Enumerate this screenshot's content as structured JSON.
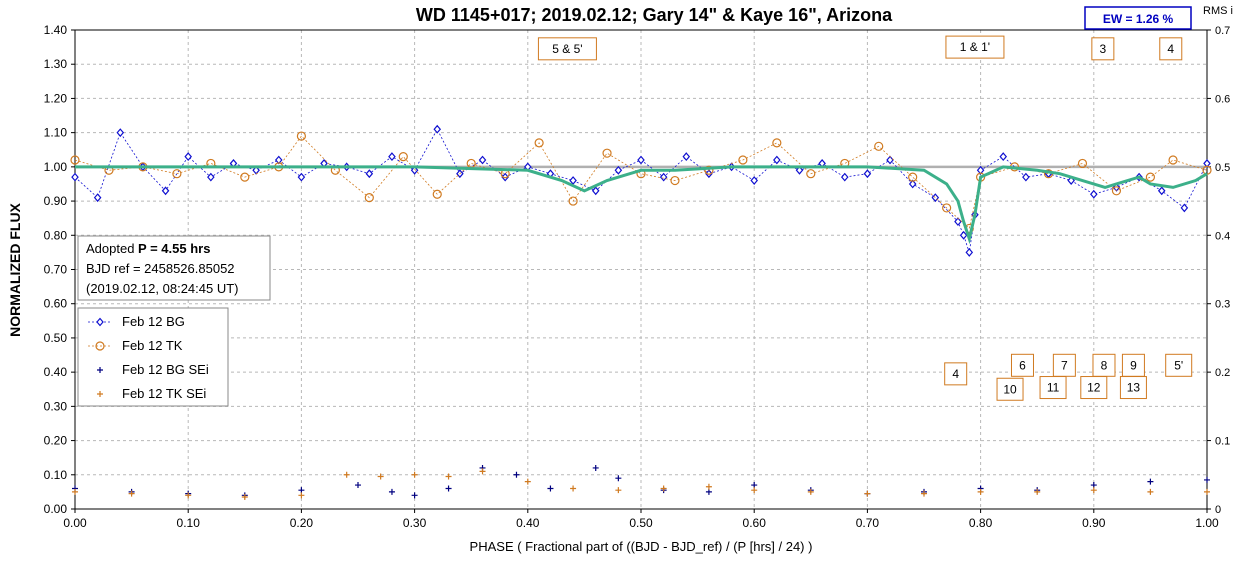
{
  "chart_data": {
    "type": "scatter",
    "title": "WD 1145+017; 2019.02.12; Gary 14\" & Kaye 16\", Arizona",
    "xlabel": "PHASE ( Fractional part of ((BJD - BJD_ref) / (P [hrs] / 24) )",
    "ylabel": "NORMALIZED FLUX",
    "y2label": "RMS i",
    "xlim": [
      0,
      1
    ],
    "ylim": [
      0,
      1.4
    ],
    "y2lim": [
      0,
      0.7
    ],
    "x_ticks": [
      "0.00",
      "0.10",
      "0.20",
      "0.30",
      "0.40",
      "0.50",
      "0.60",
      "0.70",
      "0.80",
      "0.90",
      "1.00"
    ],
    "y_ticks": [
      "0.00",
      "0.10",
      "0.20",
      "0.30",
      "0.40",
      "0.50",
      "0.60",
      "0.70",
      "0.80",
      "0.90",
      "1.00",
      "1.10",
      "1.20",
      "1.30",
      "1.40"
    ],
    "y2_ticks": [
      "0",
      "0.1",
      "0.2",
      "0.3",
      "0.4",
      "0.5",
      "0.6",
      "0.7"
    ],
    "grid": true,
    "legend_position": "left-middle",
    "ew_label": "EW =  1.26 %",
    "info_box": {
      "line1_prefix": "Adopted ",
      "line1_bold": "P = 4.55 hrs",
      "line2": "BJD ref = 2458526.85052",
      "line3": "(2019.02.12, 08:24:45 UT)"
    },
    "annotations": [
      {
        "text": "5 & 5'",
        "x": 0.435,
        "y": 1.345
      },
      {
        "text": "1 & 1'",
        "x": 0.795,
        "y": 1.35
      },
      {
        "text": "3",
        "x": 0.908,
        "y": 1.345
      },
      {
        "text": "4",
        "x": 0.968,
        "y": 1.345
      },
      {
        "text": "6",
        "x": 0.837,
        "y": 0.42
      },
      {
        "text": "7",
        "x": 0.874,
        "y": 0.42
      },
      {
        "text": "8",
        "x": 0.909,
        "y": 0.42
      },
      {
        "text": "9",
        "x": 0.935,
        "y": 0.42
      },
      {
        "text": "5'",
        "x": 0.975,
        "y": 0.42
      },
      {
        "text": "4",
        "x": 0.778,
        "y": 0.395
      },
      {
        "text": "10",
        "x": 0.826,
        "y": 0.35
      },
      {
        "text": "11",
        "x": 0.864,
        "y": 0.355
      },
      {
        "text": "12",
        "x": 0.9,
        "y": 0.355
      },
      {
        "text": "13",
        "x": 0.935,
        "y": 0.355
      }
    ],
    "colors": {
      "bg": "#1010d0",
      "tk": "#d07a20",
      "bg_sei": "#000080",
      "tk_sei": "#d07a20",
      "model": "#3cb08a",
      "baseline": "#b0b0b0",
      "ew_box": "#0000c0"
    },
    "series": [
      {
        "name": "Feb 12 BG",
        "marker": "diamond",
        "line": "dashed",
        "x": [
          0.0,
          0.02,
          0.04,
          0.06,
          0.08,
          0.1,
          0.12,
          0.14,
          0.16,
          0.18,
          0.2,
          0.22,
          0.24,
          0.26,
          0.28,
          0.3,
          0.32,
          0.34,
          0.36,
          0.38,
          0.4,
          0.42,
          0.44,
          0.46,
          0.48,
          0.5,
          0.52,
          0.54,
          0.56,
          0.58,
          0.6,
          0.62,
          0.64,
          0.66,
          0.68,
          0.7,
          0.72,
          0.74,
          0.76,
          0.78,
          0.785,
          0.79,
          0.795,
          0.8,
          0.82,
          0.84,
          0.86,
          0.88,
          0.9,
          0.92,
          0.94,
          0.96,
          0.98,
          1.0
        ],
        "y": [
          0.97,
          0.91,
          1.1,
          1.0,
          0.93,
          1.03,
          0.97,
          1.01,
          0.99,
          1.02,
          0.97,
          1.01,
          1.0,
          0.98,
          1.03,
          0.99,
          1.11,
          0.98,
          1.02,
          0.97,
          1.0,
          0.98,
          0.96,
          0.93,
          0.99,
          1.02,
          0.97,
          1.03,
          0.98,
          1.0,
          0.96,
          1.02,
          0.99,
          1.01,
          0.97,
          0.98,
          1.02,
          0.95,
          0.91,
          0.84,
          0.8,
          0.75,
          0.86,
          0.99,
          1.03,
          0.97,
          0.98,
          0.96,
          0.92,
          0.94,
          0.97,
          0.93,
          0.88,
          1.01
        ]
      },
      {
        "name": "Feb 12 TK",
        "marker": "circle",
        "line": "dashed",
        "x": [
          0.0,
          0.03,
          0.06,
          0.09,
          0.12,
          0.15,
          0.18,
          0.2,
          0.23,
          0.26,
          0.29,
          0.32,
          0.35,
          0.38,
          0.41,
          0.44,
          0.47,
          0.5,
          0.53,
          0.56,
          0.59,
          0.62,
          0.65,
          0.68,
          0.71,
          0.74,
          0.77,
          0.79,
          0.8,
          0.83,
          0.86,
          0.89,
          0.92,
          0.95,
          0.97,
          1.0
        ],
        "y": [
          1.02,
          0.99,
          1.0,
          0.98,
          1.01,
          0.97,
          1.0,
          1.09,
          0.99,
          0.91,
          1.03,
          0.92,
          1.01,
          0.98,
          1.07,
          0.9,
          1.04,
          0.98,
          0.96,
          0.99,
          1.02,
          1.07,
          0.98,
          1.01,
          1.06,
          0.97,
          0.88,
          0.82,
          0.97,
          1.0,
          0.98,
          1.01,
          0.93,
          0.97,
          1.02,
          0.99
        ]
      },
      {
        "name": "Feb 12 BG SEi",
        "marker": "plus",
        "line": "none",
        "x": [
          0.0,
          0.05,
          0.1,
          0.15,
          0.2,
          0.25,
          0.28,
          0.3,
          0.33,
          0.36,
          0.39,
          0.42,
          0.46,
          0.48,
          0.52,
          0.56,
          0.6,
          0.65,
          0.7,
          0.75,
          0.8,
          0.85,
          0.9,
          0.95,
          1.0
        ],
        "y": [
          0.06,
          0.05,
          0.045,
          0.04,
          0.055,
          0.07,
          0.05,
          0.04,
          0.06,
          0.12,
          0.1,
          0.06,
          0.12,
          0.09,
          0.055,
          0.05,
          0.07,
          0.055,
          0.045,
          0.05,
          0.06,
          0.055,
          0.07,
          0.08,
          0.085
        ]
      },
      {
        "name": "Feb 12 TK SEi",
        "marker": "plus",
        "line": "none",
        "x": [
          0.0,
          0.05,
          0.1,
          0.15,
          0.2,
          0.24,
          0.27,
          0.3,
          0.33,
          0.36,
          0.4,
          0.44,
          0.48,
          0.52,
          0.56,
          0.6,
          0.65,
          0.7,
          0.75,
          0.8,
          0.85,
          0.9,
          0.95,
          1.0
        ],
        "y": [
          0.05,
          0.045,
          0.04,
          0.035,
          0.04,
          0.1,
          0.095,
          0.1,
          0.095,
          0.11,
          0.08,
          0.06,
          0.055,
          0.06,
          0.065,
          0.055,
          0.05,
          0.045,
          0.045,
          0.05,
          0.05,
          0.055,
          0.05,
          0.05
        ]
      }
    ],
    "model": {
      "name": "model",
      "x": [
        0.0,
        0.3,
        0.4,
        0.43,
        0.45,
        0.47,
        0.5,
        0.53,
        0.58,
        0.62,
        0.7,
        0.75,
        0.77,
        0.78,
        0.785,
        0.79,
        0.795,
        0.8,
        0.82,
        0.85,
        0.87,
        0.89,
        0.91,
        0.92,
        0.94,
        0.95,
        0.97,
        0.99,
        1.0
      ],
      "y": [
        1.0,
        1.0,
        0.99,
        0.96,
        0.93,
        0.96,
        0.99,
        0.99,
        1.0,
        1.0,
        1.0,
        0.99,
        0.95,
        0.9,
        0.84,
        0.79,
        0.86,
        0.97,
        1.0,
        0.99,
        0.98,
        0.96,
        0.94,
        0.95,
        0.97,
        0.95,
        0.94,
        0.96,
        0.98
      ]
    },
    "baseline_y": 1.0
  }
}
